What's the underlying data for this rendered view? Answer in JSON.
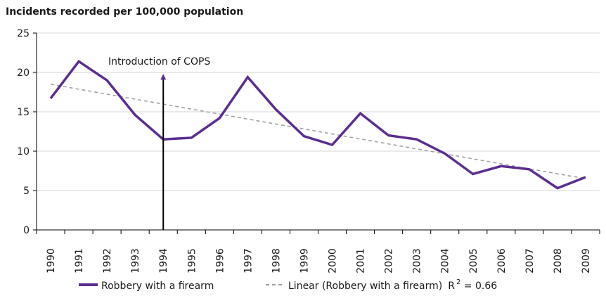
{
  "chart_data": {
    "type": "line",
    "title": "Incidents recorded per 100,000 population",
    "categories": [
      "1990",
      "1991",
      "1992",
      "1993",
      "1994",
      "1995",
      "1996",
      "1997",
      "1998",
      "1999",
      "2000",
      "2001",
      "2002",
      "2003",
      "2004",
      "2005",
      "2006",
      "2007",
      "2008",
      "2009"
    ],
    "series": [
      {
        "name": "Robbery with a firearm",
        "color": "#5b2d91",
        "values": [
          16.7,
          21.4,
          19.0,
          14.6,
          11.5,
          11.7,
          14.2,
          19.4,
          15.3,
          11.9,
          10.8,
          14.8,
          12.0,
          11.5,
          9.7,
          7.1,
          8.1,
          7.7,
          5.3,
          6.7
        ]
      }
    ],
    "trendline": {
      "name": "Linear (Robbery with a firearm)",
      "color": "#9e9e9e",
      "style": "dashed",
      "start": 18.5,
      "end": 6.5,
      "r_squared_label": "R",
      "r_squared_sup": "2",
      "r_squared_value": " = 0.66"
    },
    "annotation": {
      "text": "Introduction of COPS",
      "at_category": "1994"
    },
    "ylim": [
      0,
      25
    ],
    "yticks": [
      0,
      5,
      10,
      15,
      20,
      25
    ],
    "legend_position": "bottom",
    "grid": "horizontal"
  }
}
